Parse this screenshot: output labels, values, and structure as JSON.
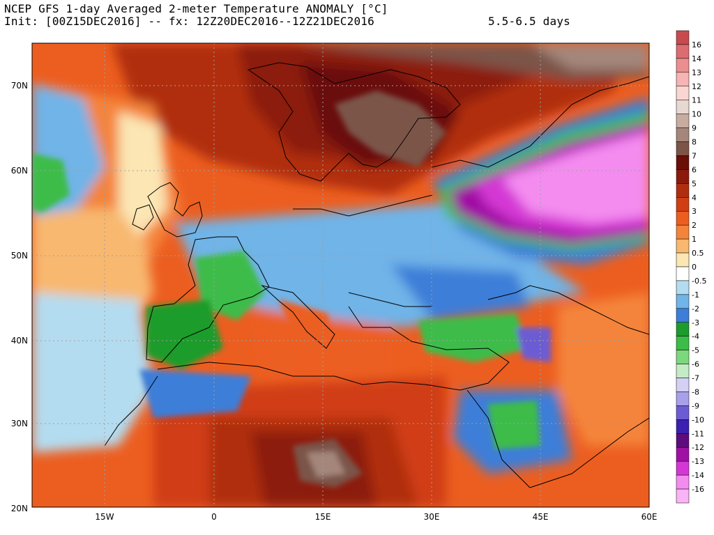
{
  "header": {
    "title": "NCEP GFS 1-day Averaged 2-meter Temperature ANOMALY [°C]",
    "init": "Init: [00Z15DEC2016] -- fx: 12Z20DEC2016--12Z21DEC2016",
    "range": "5.5-6.5 days"
  },
  "map": {
    "lat_labels": [
      "70N",
      "60N",
      "50N",
      "40N",
      "30N",
      "20N"
    ],
    "lon_labels": [
      "15W",
      "0",
      "15E",
      "30E",
      "45E",
      "60E"
    ]
  },
  "colorbar": {
    "levels": [
      {
        "label": "16",
        "color": "#c84a4f"
      },
      {
        "label": "14",
        "color": "#dc6c70"
      },
      {
        "label": "13",
        "color": "#ec8e90"
      },
      {
        "label": "12",
        "color": "#f6b4b4"
      },
      {
        "label": "11",
        "color": "#fad6d2"
      },
      {
        "label": "10",
        "color": "#e8d8d2"
      },
      {
        "label": "9",
        "color": "#c8aca0"
      },
      {
        "label": "8",
        "color": "#a4867a"
      },
      {
        "label": "7",
        "color": "#7c5448"
      },
      {
        "label": "6",
        "color": "#6a0e08"
      },
      {
        "label": "5",
        "color": "#8c1a0c"
      },
      {
        "label": "4",
        "color": "#b02e10"
      },
      {
        "label": "3",
        "color": "#d03e14"
      },
      {
        "label": "2",
        "color": "#ec5e20"
      },
      {
        "label": "1",
        "color": "#f4843a"
      },
      {
        "label": "0.5",
        "color": "#f8b870"
      },
      {
        "label": "0",
        "color": "#fbe6b4"
      },
      {
        "label": "-0.5",
        "color": "#ffffff"
      },
      {
        "label": "-1",
        "color": "#b4dcf0"
      },
      {
        "label": "-2",
        "color": "#70b4e8"
      },
      {
        "label": "-3",
        "color": "#3c7ed8"
      },
      {
        "label": "-4",
        "color": "#1c9c2c"
      },
      {
        "label": "-5",
        "color": "#3cbc48"
      },
      {
        "label": "-6",
        "color": "#7cd87c"
      },
      {
        "label": "-7",
        "color": "#c4ecc4"
      },
      {
        "label": "-8",
        "color": "#d4d0f4"
      },
      {
        "label": "-9",
        "color": "#a8a0e8"
      },
      {
        "label": "-10",
        "color": "#6c5cd4"
      },
      {
        "label": "-11",
        "color": "#3c20b0"
      },
      {
        "label": "-12",
        "color": "#5c0c7c"
      },
      {
        "label": "-13",
        "color": "#a010a4"
      },
      {
        "label": "-14",
        "color": "#d438d4"
      },
      {
        "label": "-16",
        "color": "#f48cf0"
      }
    ],
    "bottom_color": "#f8b4f4"
  }
}
